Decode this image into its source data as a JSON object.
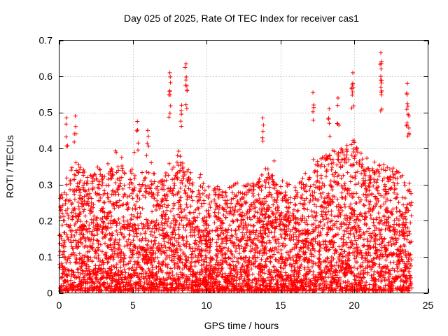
{
  "chart_data": {
    "type": "scatter",
    "title": "Day 025 of 2025, Rate Of TEC Index for receiver cas1",
    "xlabel": "GPS time / hours",
    "ylabel": "ROTI / TECUs",
    "xlim": [
      0,
      25
    ],
    "ylim": [
      0,
      0.7
    ],
    "x_ticks": [
      "0",
      "5",
      "10",
      "15",
      "20",
      "25"
    ],
    "y_ticks": [
      "0",
      "0.1",
      "0.2",
      "0.3",
      "0.4",
      "0.5",
      "0.6",
      "0.7"
    ],
    "grid": true,
    "marker": "+",
    "series_color": "#ff0000",
    "data_coverage_hours": [
      0,
      23.9
    ],
    "notable_peaks": [
      {
        "x": 0.5,
        "y": 0.485
      },
      {
        "x": 1.1,
        "y": 0.49
      },
      {
        "x": 5.3,
        "y": 0.475
      },
      {
        "x": 6.0,
        "y": 0.45
      },
      {
        "x": 7.5,
        "y": 0.61
      },
      {
        "x": 7.5,
        "y": 0.56
      },
      {
        "x": 8.6,
        "y": 0.635
      },
      {
        "x": 8.6,
        "y": 0.59
      },
      {
        "x": 8.3,
        "y": 0.52
      },
      {
        "x": 13.8,
        "y": 0.485
      },
      {
        "x": 17.2,
        "y": 0.555
      },
      {
        "x": 18.3,
        "y": 0.51
      },
      {
        "x": 18.9,
        "y": 0.54
      },
      {
        "x": 19.9,
        "y": 0.61
      },
      {
        "x": 19.9,
        "y": 0.58
      },
      {
        "x": 21.8,
        "y": 0.665
      },
      {
        "x": 21.8,
        "y": 0.6
      },
      {
        "x": 21.8,
        "y": 0.57
      },
      {
        "x": 23.6,
        "y": 0.58
      },
      {
        "x": 23.6,
        "y": 0.525
      },
      {
        "x": 23.7,
        "y": 0.49
      }
    ],
    "activity_envelope": [
      {
        "hour": 0,
        "typical_max": 0.27
      },
      {
        "hour": 1,
        "typical_max": 0.36
      },
      {
        "hour": 2,
        "typical_max": 0.33
      },
      {
        "hour": 3,
        "typical_max": 0.36
      },
      {
        "hour": 4,
        "typical_max": 0.35
      },
      {
        "hour": 5,
        "typical_max": 0.34
      },
      {
        "hour": 6,
        "typical_max": 0.33
      },
      {
        "hour": 7,
        "typical_max": 0.32
      },
      {
        "hour": 8,
        "typical_max": 0.4
      },
      {
        "hour": 9,
        "typical_max": 0.33
      },
      {
        "hour": 10,
        "typical_max": 0.3
      },
      {
        "hour": 11,
        "typical_max": 0.28
      },
      {
        "hour": 12,
        "typical_max": 0.3
      },
      {
        "hour": 13,
        "typical_max": 0.3
      },
      {
        "hour": 14,
        "typical_max": 0.34
      },
      {
        "hour": 15,
        "typical_max": 0.3
      },
      {
        "hour": 16,
        "typical_max": 0.3
      },
      {
        "hour": 17,
        "typical_max": 0.34
      },
      {
        "hour": 18,
        "typical_max": 0.38
      },
      {
        "hour": 19,
        "typical_max": 0.4
      },
      {
        "hour": 20,
        "typical_max": 0.42
      },
      {
        "hour": 21,
        "typical_max": 0.36
      },
      {
        "hour": 22,
        "typical_max": 0.36
      },
      {
        "hour": 23,
        "typical_max": 0.33
      },
      {
        "hour": 23.9,
        "typical_max": 0.3
      }
    ]
  }
}
